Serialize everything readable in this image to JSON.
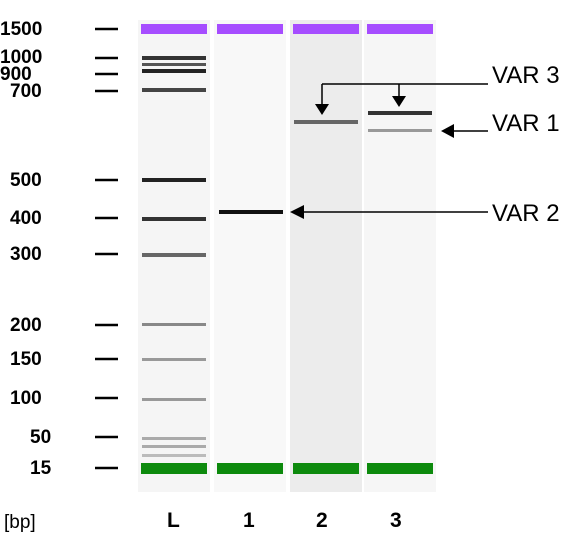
{
  "unit": "[bp]",
  "markers": [
    "1500",
    "1000",
    "900",
    "700",
    "500",
    "400",
    "300",
    "200",
    "150",
    "100",
    "50",
    "15"
  ],
  "lanes": [
    {
      "label": "L"
    },
    {
      "label": "1"
    },
    {
      "label": "2"
    },
    {
      "label": "3"
    }
  ],
  "annotations": [
    {
      "label": "VAR 3"
    },
    {
      "label": "VAR 1"
    },
    {
      "label": "VAR 2"
    }
  ],
  "colors": {
    "upper_marker": "#a64dff",
    "lower_marker": "#0d8a0d"
  }
}
